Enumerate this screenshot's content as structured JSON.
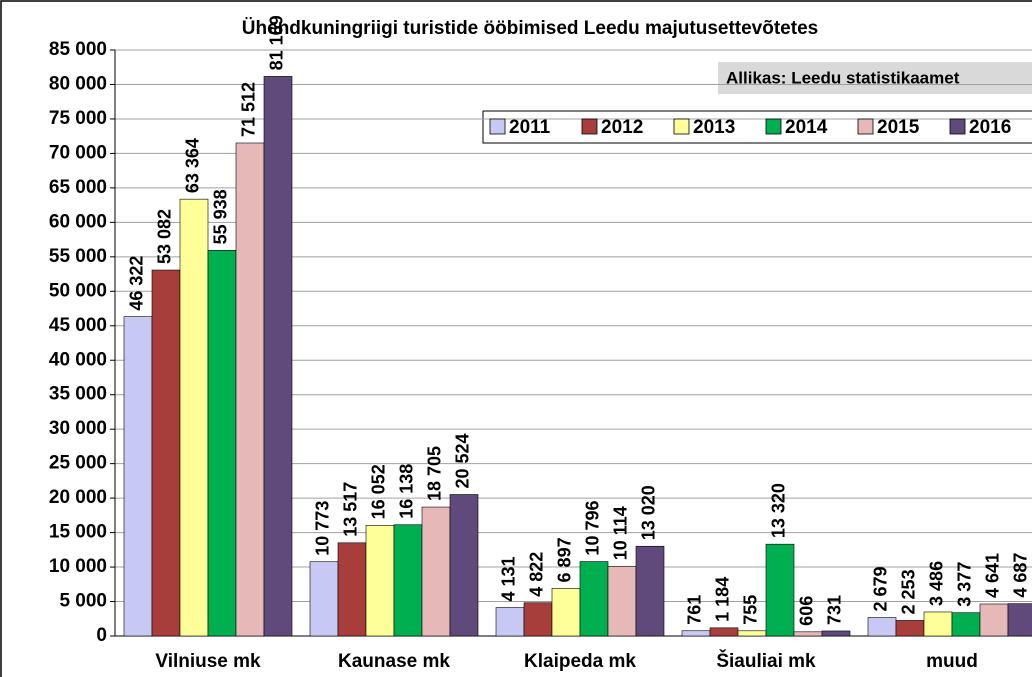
{
  "chart_data": {
    "type": "bar",
    "title": "Ühendkuningriigi turistide ööbimised Leedu majutusettevõtetes",
    "source": "Allikas: Leedu statistikaamet",
    "categories": [
      "Vilniuse mk",
      "Kaunase mk",
      "Klaipeda mk",
      "Šiauliai mk",
      "muud"
    ],
    "series": [
      {
        "name": "2011",
        "color": "#c8c8f4",
        "values": [
          46322,
          10773,
          4131,
          761,
          2679
        ],
        "value_labels": [
          "46 322",
          "10 773",
          "4 131",
          "761",
          "2 679"
        ]
      },
      {
        "name": "2012",
        "color": "#a83e3c",
        "values": [
          53082,
          13517,
          4822,
          1184,
          2253
        ],
        "value_labels": [
          "53 082",
          "13 517",
          "4 822",
          "1 184",
          "2 253"
        ]
      },
      {
        "name": "2013",
        "color": "#ffff99",
        "values": [
          63364,
          16052,
          6897,
          755,
          3486
        ],
        "value_labels": [
          "63 364",
          "16 052",
          "6 897",
          "755",
          "3 486"
        ]
      },
      {
        "name": "2014",
        "color": "#00b050",
        "values": [
          55938,
          16138,
          10796,
          13320,
          3377
        ],
        "value_labels": [
          "55 938",
          "16 138",
          "10 796",
          "13 320",
          "3 377"
        ]
      },
      {
        "name": "2015",
        "color": "#e6b8b7",
        "values": [
          71512,
          18705,
          10114,
          606,
          4641
        ],
        "value_labels": [
          "71 512",
          "18 705",
          "10 114",
          "606",
          "4 641"
        ]
      },
      {
        "name": "2016",
        "color": "#604a7b",
        "values": [
          81169,
          20524,
          13020,
          731,
          4687
        ],
        "value_labels": [
          "81 169",
          "20 524",
          "13 020",
          "731",
          "4 687"
        ]
      }
    ],
    "ylim": [
      0,
      85000
    ],
    "yticks": [
      0,
      {
        "value": 5000,
        "label": "5 000"
      },
      {
        "value": 10000,
        "label": "10 000"
      },
      {
        "value": 15000,
        "label": "15 000"
      },
      {
        "value": 20000,
        "label": "20 000"
      },
      {
        "value": 25000,
        "label": "25 000"
      },
      {
        "value": 30000,
        "label": "30 000"
      },
      {
        "value": 35000,
        "label": "35 000"
      },
      {
        "value": 40000,
        "label": "40 000"
      },
      {
        "value": 45000,
        "label": "45 000"
      },
      {
        "value": 50000,
        "label": "50 000"
      },
      {
        "value": 55000,
        "label": "55 000"
      },
      {
        "value": 60000,
        "label": "60 000"
      },
      {
        "value": 65000,
        "label": "65 000"
      },
      {
        "value": 70000,
        "label": "70 000"
      },
      {
        "value": 75000,
        "label": "75 000"
      },
      {
        "value": 80000,
        "label": "80 000"
      },
      {
        "value": 85000,
        "label": "85 000"
      }
    ],
    "grid": true
  }
}
